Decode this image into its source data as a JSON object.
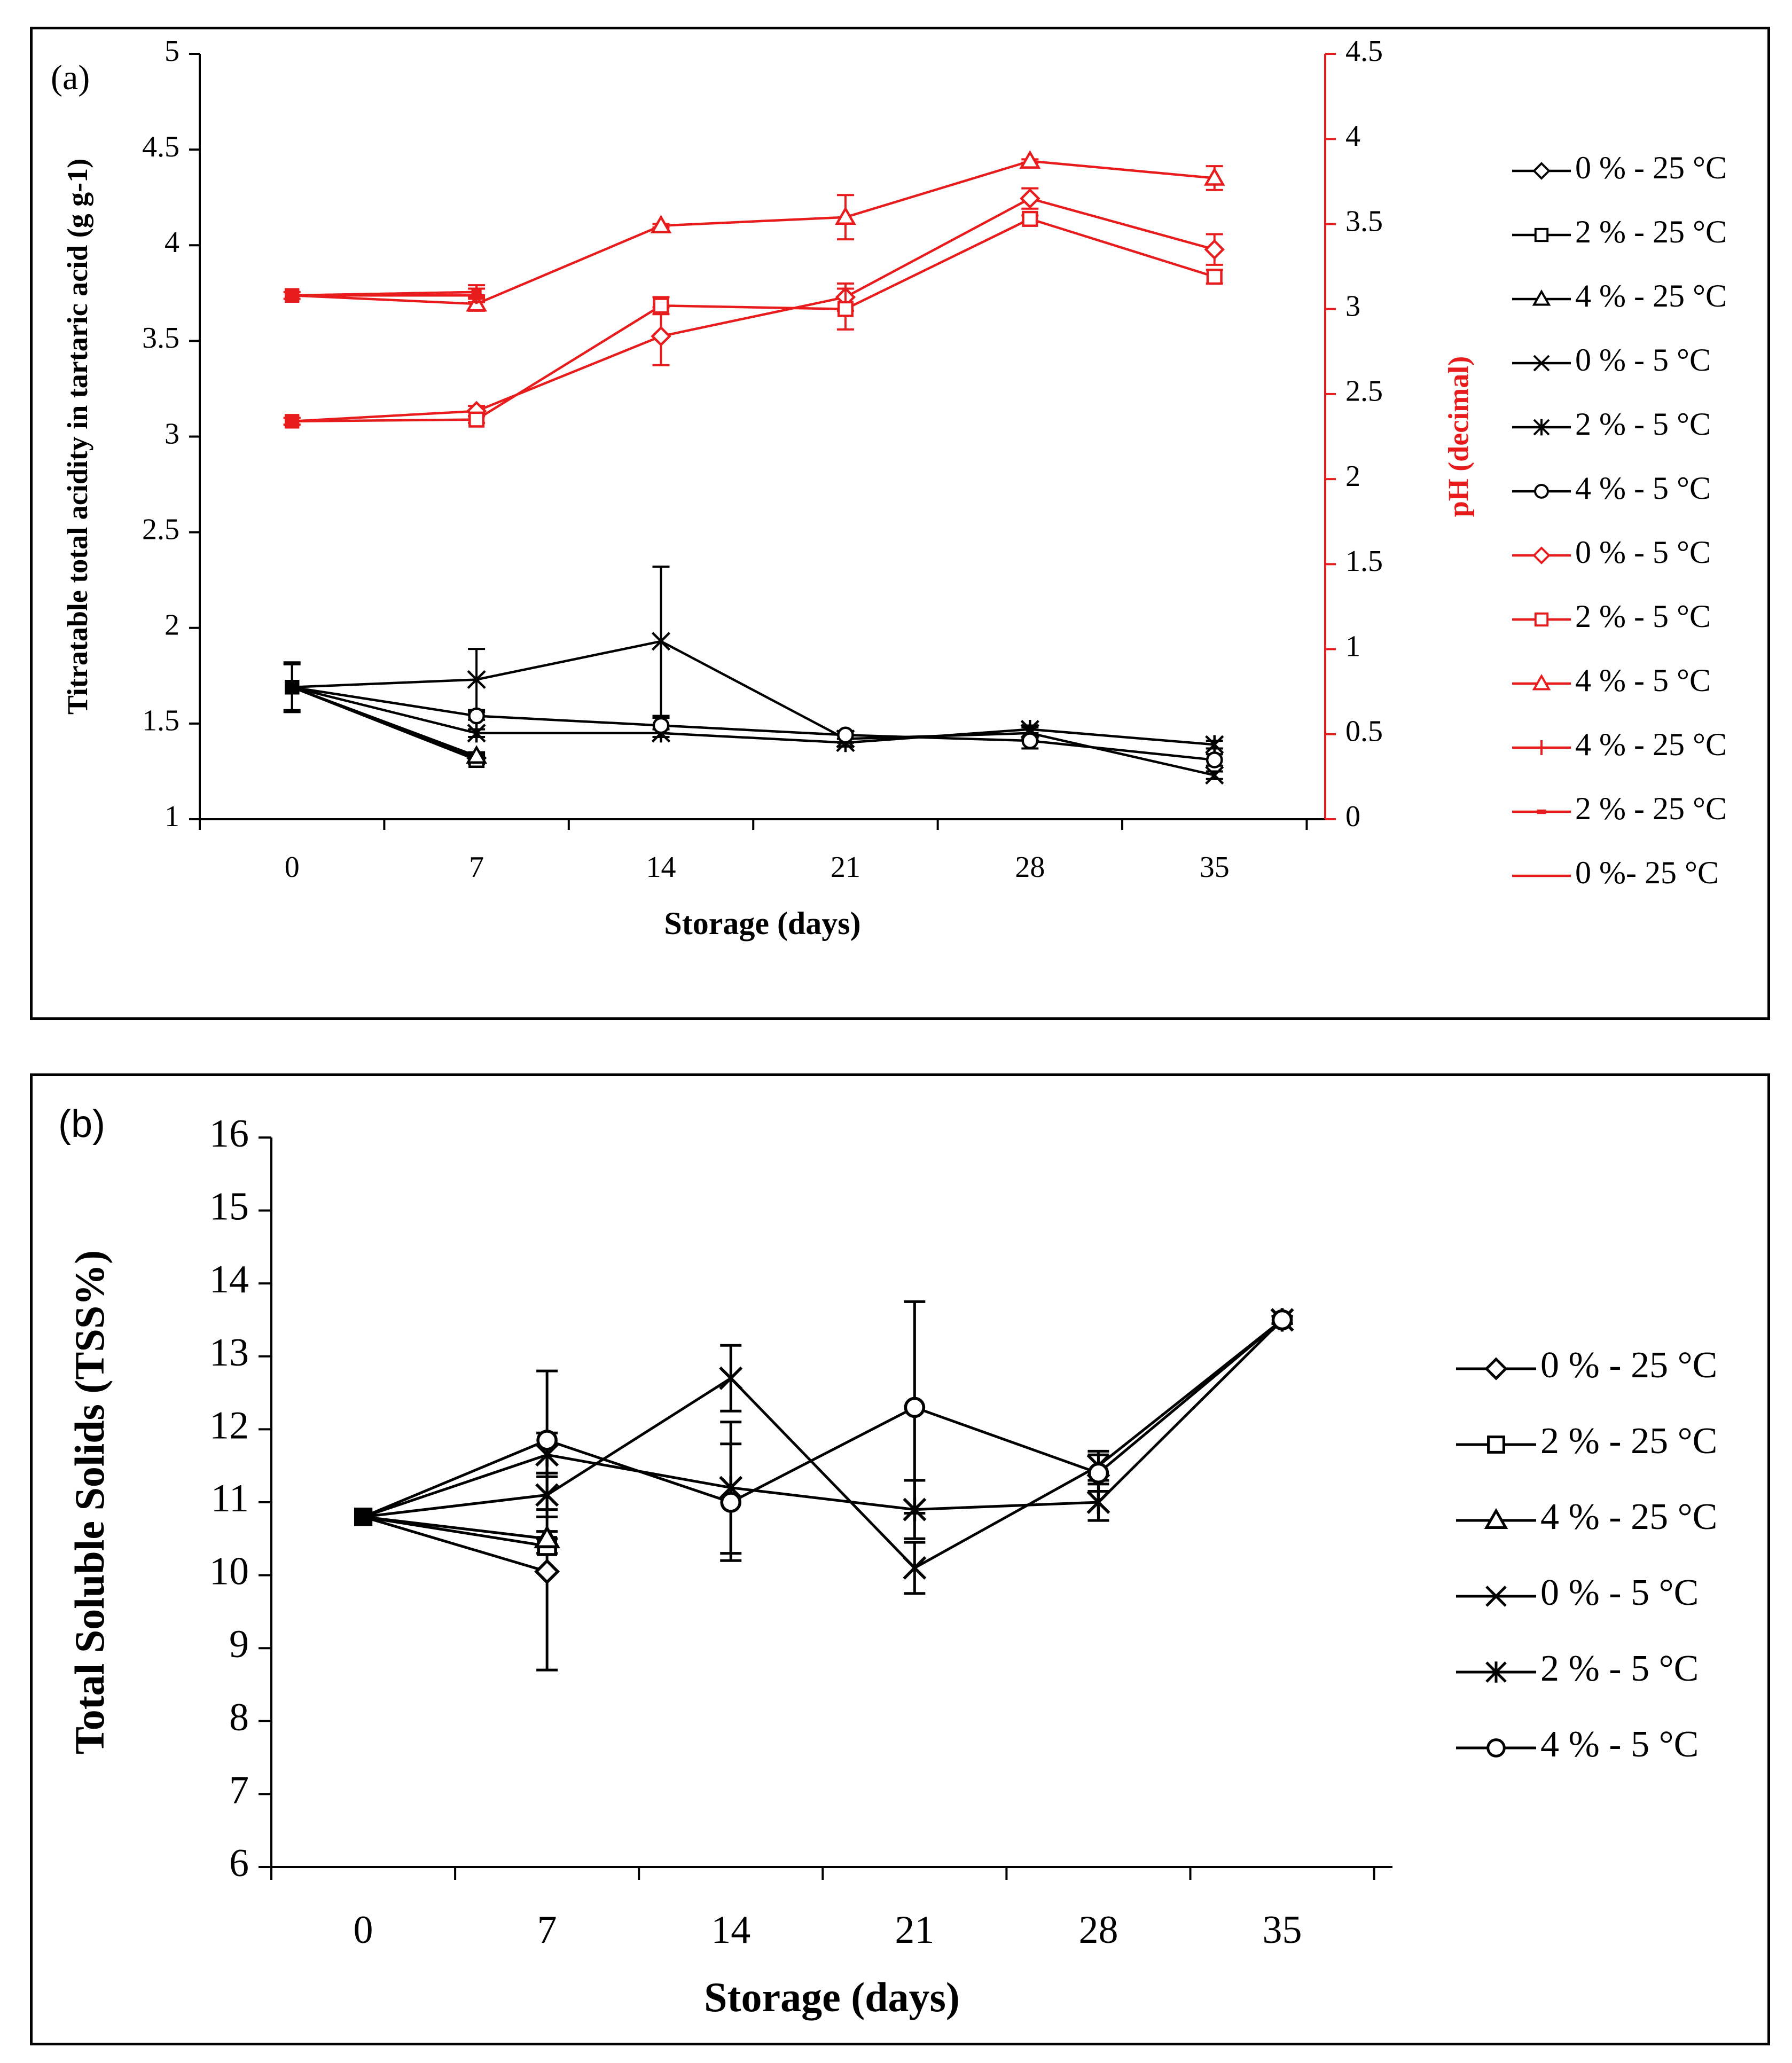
{
  "chart_data": [
    {
      "panel_label": "(a)",
      "type": "line",
      "xlabel": "Storage (days)",
      "ylabel_left": "Titratable total acidity in tartaric acid",
      "ylabel_left_unit": "(g g-1)",
      "ylabel_right": "pH (decimal)",
      "right_axis_color": "#e81c1c",
      "x": [
        0,
        7,
        14,
        21,
        28,
        35
      ],
      "x_ticks": [
        "0",
        "7",
        "14",
        "21",
        "28",
        "35"
      ],
      "ylim_left": [
        1,
        5
      ],
      "y_ticks_left": [
        "1",
        "1.5",
        "2",
        "2.5",
        "3",
        "3.5",
        "4",
        "4.5",
        "5"
      ],
      "ylim_right": [
        0,
        4.5
      ],
      "y_ticks_right": [
        "0",
        "0.5",
        "1",
        "1.5",
        "2",
        "2.5",
        "3",
        "3.5",
        "4",
        "4.5"
      ],
      "legend_position": "right",
      "series": [
        {
          "name": "0 % - 25 °C",
          "marker": "diamond",
          "color": "#000000",
          "axis": "left",
          "values": [
            1.69,
            1.32,
            null,
            null,
            null,
            null
          ],
          "err": [
            0.12,
            0.02,
            null,
            null,
            null,
            null
          ]
        },
        {
          "name": "2 % - 25 °C",
          "marker": "square",
          "color": "#000000",
          "axis": "left",
          "values": [
            1.69,
            1.31,
            null,
            null,
            null,
            null
          ],
          "err": [
            0.0,
            0.02,
            null,
            null,
            null,
            null
          ]
        },
        {
          "name": "4 % - 25 °C",
          "marker": "triangle",
          "color": "#000000",
          "axis": "left",
          "values": [
            1.69,
            1.33,
            null,
            null,
            null,
            null
          ],
          "err": [
            0.0,
            0.02,
            null,
            null,
            null,
            null
          ]
        },
        {
          "name": "0 % - 5 °C",
          "marker": "x",
          "color": "#000000",
          "axis": "left",
          "values": [
            1.69,
            1.73,
            1.93,
            1.42,
            1.45,
            1.23
          ],
          "err": [
            0.13,
            0.16,
            0.39,
            0.02,
            0.03,
            0.02
          ]
        },
        {
          "name": "2 % - 5 °C",
          "marker": "star",
          "color": "#000000",
          "axis": "left",
          "values": [
            1.69,
            1.45,
            1.45,
            1.4,
            1.47,
            1.39
          ],
          "err": [
            0.0,
            0.02,
            0.02,
            0.02,
            0.02,
            0.02
          ]
        },
        {
          "name": "4 % - 5 °C",
          "marker": "circle",
          "color": "#000000",
          "axis": "left",
          "values": [
            1.69,
            1.54,
            1.49,
            1.44,
            1.41,
            1.31
          ],
          "err": [
            0.0,
            0.02,
            0.04,
            0.02,
            0.04,
            0.03
          ]
        },
        {
          "name": "0 % - 5 °C",
          "marker": "diamond",
          "color": "#e81c1c",
          "axis": "right",
          "values": [
            2.34,
            2.4,
            2.84,
            3.07,
            3.65,
            3.35
          ],
          "err": [
            0.02,
            0.03,
            0.17,
            0.08,
            0.06,
            0.09
          ]
        },
        {
          "name": "2 % - 5 °C",
          "marker": "square",
          "color": "#e81c1c",
          "axis": "right",
          "values": [
            2.34,
            2.35,
            3.02,
            3.0,
            3.53,
            3.19
          ],
          "err": [
            0.02,
            0.02,
            0.05,
            0.12,
            0.02,
            0.04
          ]
        },
        {
          "name": "4 % - 5 °C",
          "marker": "triangle",
          "color": "#e81c1c",
          "axis": "right",
          "values": [
            3.08,
            3.03,
            3.49,
            3.54,
            3.87,
            3.77
          ],
          "err": [
            0.02,
            0.04,
            0.01,
            0.13,
            0.01,
            0.07
          ]
        },
        {
          "name": "4 % - 25 °C",
          "marker": "plus",
          "color": "#e81c1c",
          "axis": "right",
          "values": [
            3.08,
            3.08,
            null,
            null,
            null,
            null
          ],
          "err": [
            0.0,
            0.04,
            null,
            null,
            null,
            null
          ]
        },
        {
          "name": "2 % - 25 °C",
          "marker": "dash",
          "color": "#e81c1c",
          "axis": "right",
          "values": [
            3.08,
            3.1,
            null,
            null,
            null,
            null
          ],
          "err": [
            0.0,
            0.04,
            null,
            null,
            null,
            null
          ]
        },
        {
          "name": "0 %- 25 °C",
          "marker": "none",
          "color": "#e81c1c",
          "axis": "right",
          "values": [
            3.08,
            3.1,
            null,
            null,
            null,
            null
          ],
          "err": [
            0.0,
            0.0,
            null,
            null,
            null,
            null
          ]
        }
      ]
    },
    {
      "panel_label": "(b)",
      "type": "line",
      "xlabel": "Storage (days)",
      "ylabel_left": "Total Soluble Solids (TSS%)",
      "x": [
        0,
        7,
        14,
        21,
        28,
        35
      ],
      "x_ticks": [
        "0",
        "7",
        "14",
        "21",
        "28",
        "35"
      ],
      "ylim_left": [
        6,
        16
      ],
      "y_ticks_left": [
        "6",
        "7",
        "8",
        "9",
        "10",
        "11",
        "12",
        "13",
        "14",
        "15",
        "16"
      ],
      "legend_position": "right",
      "series": [
        {
          "name": "0 % - 25 °C",
          "marker": "diamond",
          "color": "#000000",
          "values": [
            10.8,
            10.05,
            null,
            null,
            null,
            null
          ],
          "err": [
            0.0,
            1.35,
            null,
            null,
            null,
            null
          ]
        },
        {
          "name": "2 % - 25 °C",
          "marker": "square",
          "color": "#000000",
          "values": [
            10.8,
            10.4,
            null,
            null,
            null,
            null
          ],
          "err": [
            0.0,
            0.1,
            null,
            null,
            null,
            null
          ]
        },
        {
          "name": "4 % - 25 °C",
          "marker": "triangle",
          "color": "#000000",
          "values": [
            10.8,
            10.5,
            null,
            null,
            null,
            null
          ],
          "err": [
            0.0,
            0.1,
            null,
            null,
            null,
            null
          ]
        },
        {
          "name": "0 % - 5 °C",
          "marker": "x",
          "color": "#000000",
          "values": [
            10.8,
            11.1,
            12.7,
            10.1,
            11.5,
            13.5
          ],
          "err": [
            0.0,
            0.3,
            0.45,
            0.35,
            0.2,
            0.05
          ]
        },
        {
          "name": "2 % - 5 °C",
          "marker": "star",
          "color": "#000000",
          "values": [
            10.8,
            11.65,
            11.2,
            10.9,
            11.0,
            13.5
          ],
          "err": [
            0.0,
            0.3,
            0.9,
            0.4,
            0.25,
            0.05
          ]
        },
        {
          "name": "4 % - 5 °C",
          "marker": "circle",
          "color": "#000000",
          "values": [
            10.8,
            11.85,
            11.0,
            12.3,
            11.4,
            13.5
          ],
          "err": [
            0.0,
            0.95,
            0.8,
            1.45,
            0.25,
            0.05
          ]
        }
      ]
    }
  ]
}
